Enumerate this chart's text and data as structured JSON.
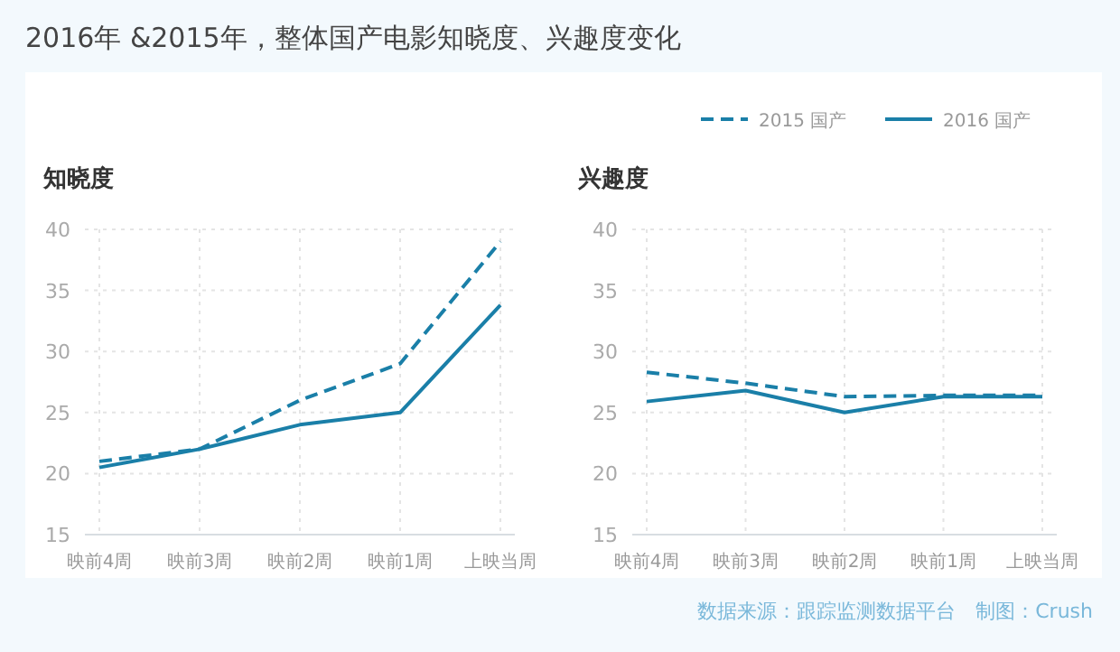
{
  "chart_data": [
    {
      "type": "line",
      "title": "2016年 &2015年，整体国产电影知晓度、兴趣度变化",
      "ylabel": "知晓度",
      "categories": [
        "映前4周",
        "映前3周",
        "映前2周",
        "映前1周",
        "上映当周"
      ],
      "ylim": [
        15,
        40
      ],
      "yticks": [
        15,
        20,
        25,
        30,
        35,
        40
      ],
      "grid": true,
      "marker": "none",
      "series": [
        {
          "color": "#1a7fa8",
          "line_style": "dashed",
          "values": [
            21,
            22,
            26,
            29,
            39
          ]
        },
        {
          "color": "#1a7fa8",
          "line_style": "solid",
          "values": [
            20.5,
            22,
            24,
            25,
            33.8
          ]
        }
      ]
    },
    {
      "type": "line",
      "ylabel": "兴趣度",
      "categories": [
        "映前4周",
        "映前3周",
        "映前2周",
        "映前1周",
        "上映当周"
      ],
      "ylim": [
        15,
        40
      ],
      "yticks": [
        15,
        20,
        25,
        30,
        35,
        40
      ],
      "grid": true,
      "marker": "none",
      "legend": "top right",
      "annotations": [
        "数据来源：跟踪监测数据平台　制图：Crush"
      ],
      "series": [
        {
          "name": "2015 国产",
          "color": "#1a7fa8",
          "line_style": "dashed",
          "values": [
            28.3,
            27.4,
            26.3,
            26.4,
            26.4
          ]
        },
        {
          "name": "2016 国产",
          "color": "#1a7fa8",
          "line_style": "solid",
          "values": [
            25.9,
            26.8,
            25,
            26.3,
            26.3
          ]
        }
      ]
    }
  ]
}
